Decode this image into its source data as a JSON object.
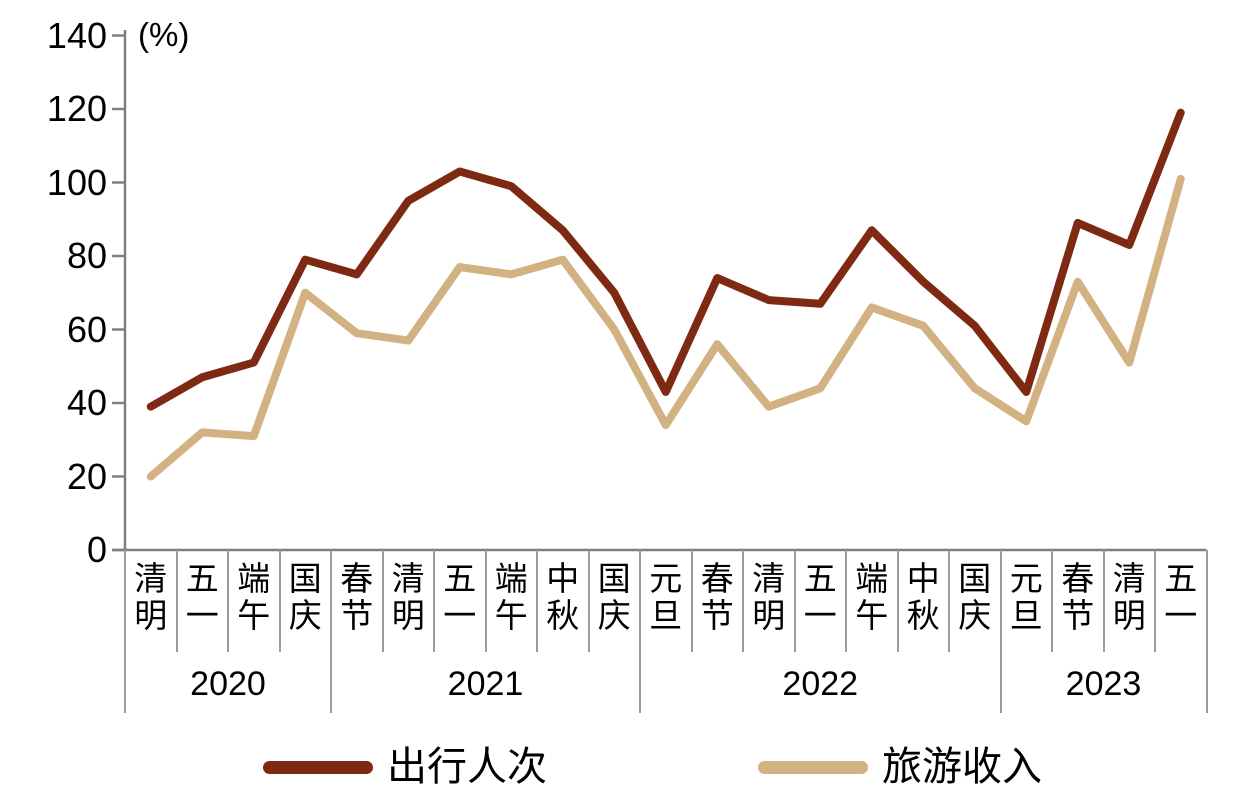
{
  "chart": {
    "unit_label": "(%)"
  },
  "chart_data": {
    "type": "line",
    "title": "",
    "xlabel": "",
    "ylabel": "(%)",
    "ylim": [
      0,
      140
    ],
    "grid": false,
    "legend_position": "bottom",
    "y_ticks": [
      0,
      20,
      40,
      60,
      80,
      100,
      120,
      140
    ],
    "categories": [
      "清明",
      "五一",
      "端午",
      "国庆",
      "春节",
      "清明",
      "五一",
      "端午",
      "中秋",
      "国庆",
      "元旦",
      "春节",
      "清明",
      "五一",
      "端午",
      "中秋",
      "国庆",
      "元旦",
      "春节",
      "清明",
      "五一"
    ],
    "year_groups": [
      {
        "label": "2020",
        "count": 4
      },
      {
        "label": "2021",
        "count": 6
      },
      {
        "label": "2022",
        "count": 7
      },
      {
        "label": "2023",
        "count": 4
      }
    ],
    "series": [
      {
        "name": "出行人次",
        "color": "#7E2A12",
        "values": [
          39,
          47,
          51,
          79,
          75,
          95,
          103,
          99,
          87,
          70,
          43,
          74,
          68,
          67,
          87,
          73,
          61,
          43,
          89,
          83,
          119
        ]
      },
      {
        "name": "旅游收入",
        "color": "#D2B283",
        "values": [
          20,
          32,
          31,
          70,
          59,
          57,
          77,
          75,
          79,
          60,
          34,
          56,
          39,
          44,
          66,
          61,
          44,
          35,
          73,
          51,
          101
        ]
      }
    ]
  },
  "legend": {
    "items": [
      {
        "label": "出行人次",
        "color": "#7E2A12"
      },
      {
        "label": "旅游收入",
        "color": "#D2B283"
      }
    ]
  },
  "colors": {
    "axis": "#7f7f7f",
    "separator": "#9c9c9c",
    "text": "#000000"
  }
}
